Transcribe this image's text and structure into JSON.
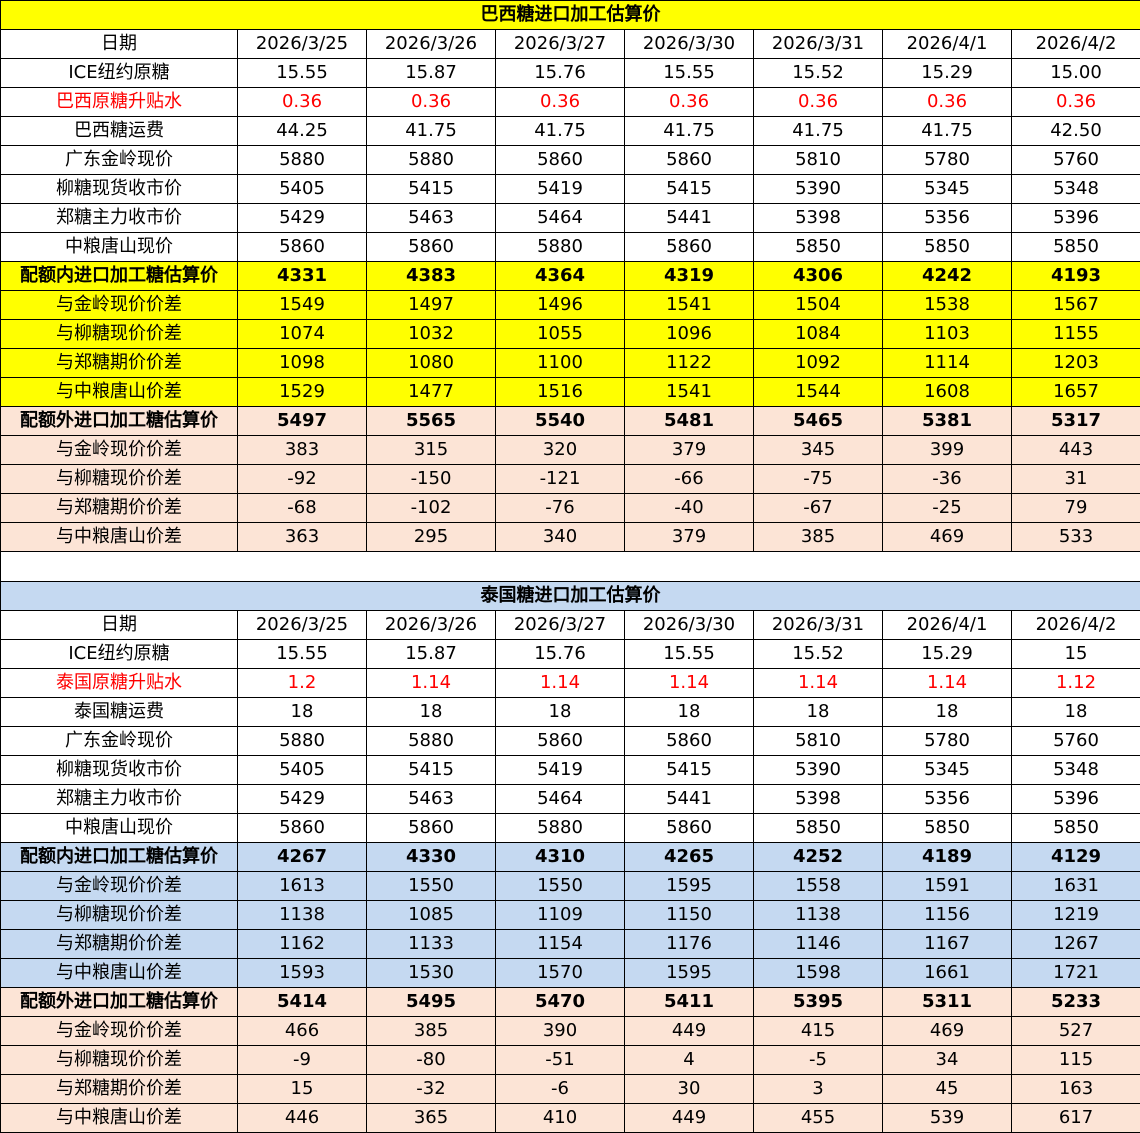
{
  "colors": {
    "yellow": "#FFFF00",
    "peach": "#FCE4D6",
    "blue": "#C5D9F1",
    "red": "#FF0000"
  },
  "tables": [
    {
      "title": "巴西糖进口加工估算价",
      "rows": [
        {
          "label": "日期",
          "style": "plain",
          "values": [
            "2026/3/25",
            "2026/3/26",
            "2026/3/27",
            "2026/3/30",
            "2026/3/31",
            "2026/4/1",
            "2026/4/2"
          ]
        },
        {
          "label": "ICE纽约原糖",
          "style": "plain",
          "values": [
            "15.55",
            "15.87",
            "15.76",
            "15.55",
            "15.52",
            "15.29",
            "15.00"
          ]
        },
        {
          "label": "巴西原糖升贴水",
          "style": "red",
          "values": [
            "0.36",
            "0.36",
            "0.36",
            "0.36",
            "0.36",
            "0.36",
            "0.36"
          ]
        },
        {
          "label": "巴西糖运费",
          "style": "plain",
          "values": [
            "44.25",
            "41.75",
            "41.75",
            "41.75",
            "41.75",
            "41.75",
            "42.50"
          ]
        },
        {
          "label": "广东金岭现价",
          "style": "plain",
          "values": [
            "5880",
            "5880",
            "5860",
            "5860",
            "5810",
            "5780",
            "5760"
          ]
        },
        {
          "label": "柳糖现货收市价",
          "style": "plain",
          "values": [
            "5405",
            "5415",
            "5419",
            "5415",
            "5390",
            "5345",
            "5348"
          ]
        },
        {
          "label": "郑糖主力收市价",
          "style": "plain",
          "values": [
            "5429",
            "5463",
            "5464",
            "5441",
            "5398",
            "5356",
            "5396"
          ]
        },
        {
          "label": "中粮唐山现价",
          "style": "plain",
          "values": [
            "5860",
            "5860",
            "5880",
            "5860",
            "5850",
            "5850",
            "5850"
          ]
        },
        {
          "label": "配额内进口加工糖估算价",
          "style": "yellow bold",
          "values": [
            "4331",
            "4383",
            "4364",
            "4319",
            "4306",
            "4242",
            "4193"
          ]
        },
        {
          "label": "与金岭现价价差",
          "style": "yellow",
          "values": [
            "1549",
            "1497",
            "1496",
            "1541",
            "1504",
            "1538",
            "1567"
          ]
        },
        {
          "label": "与柳糖现价价差",
          "style": "yellow",
          "values": [
            "1074",
            "1032",
            "1055",
            "1096",
            "1084",
            "1103",
            "1155"
          ]
        },
        {
          "label": "与郑糖期价价差",
          "style": "yellow",
          "values": [
            "1098",
            "1080",
            "1100",
            "1122",
            "1092",
            "1114",
            "1203"
          ]
        },
        {
          "label": "与中粮唐山价差",
          "style": "yellow",
          "values": [
            "1529",
            "1477",
            "1516",
            "1541",
            "1544",
            "1608",
            "1657"
          ]
        },
        {
          "label": "配额外进口加工糖估算价",
          "style": "peach bold",
          "values": [
            "5497",
            "5565",
            "5540",
            "5481",
            "5465",
            "5381",
            "5317"
          ]
        },
        {
          "label": "与金岭现价价差",
          "style": "peach",
          "values": [
            "383",
            "315",
            "320",
            "379",
            "345",
            "399",
            "443"
          ]
        },
        {
          "label": "与柳糖现价价差",
          "style": "peach",
          "values": [
            "-92",
            "-150",
            "-121",
            "-66",
            "-75",
            "-36",
            "31"
          ]
        },
        {
          "label": "与郑糖期价价差",
          "style": "peach",
          "values": [
            "-68",
            "-102",
            "-76",
            "-40",
            "-67",
            "-25",
            "79"
          ]
        },
        {
          "label": "与中粮唐山价差",
          "style": "peach",
          "values": [
            "363",
            "295",
            "340",
            "379",
            "385",
            "469",
            "533"
          ]
        }
      ]
    },
    {
      "title": "泰国糖进口加工估算价",
      "rows": [
        {
          "label": "日期",
          "style": "plain",
          "values": [
            "2026/3/25",
            "2026/3/26",
            "2026/3/27",
            "2026/3/30",
            "2026/3/31",
            "2026/4/1",
            "2026/4/2"
          ]
        },
        {
          "label": "ICE纽约原糖",
          "style": "plain",
          "values": [
            "15.55",
            "15.87",
            "15.76",
            "15.55",
            "15.52",
            "15.29",
            "15"
          ]
        },
        {
          "label": "泰国原糖升贴水",
          "style": "red",
          "values": [
            "1.2",
            "1.14",
            "1.14",
            "1.14",
            "1.14",
            "1.14",
            "1.12"
          ]
        },
        {
          "label": "泰国糖运费",
          "style": "plain",
          "values": [
            "18",
            "18",
            "18",
            "18",
            "18",
            "18",
            "18"
          ]
        },
        {
          "label": "广东金岭现价",
          "style": "plain",
          "values": [
            "5880",
            "5880",
            "5860",
            "5860",
            "5810",
            "5780",
            "5760"
          ]
        },
        {
          "label": "柳糖现货收市价",
          "style": "plain",
          "values": [
            "5405",
            "5415",
            "5419",
            "5415",
            "5390",
            "5345",
            "5348"
          ]
        },
        {
          "label": "郑糖主力收市价",
          "style": "plain",
          "values": [
            "5429",
            "5463",
            "5464",
            "5441",
            "5398",
            "5356",
            "5396"
          ]
        },
        {
          "label": "中粮唐山现价",
          "style": "plain",
          "values": [
            "5860",
            "5860",
            "5880",
            "5860",
            "5850",
            "5850",
            "5850"
          ]
        },
        {
          "label": "配额内进口加工糖估算价",
          "style": "blue bold",
          "values": [
            "4267",
            "4330",
            "4310",
            "4265",
            "4252",
            "4189",
            "4129"
          ]
        },
        {
          "label": "与金岭现价价差",
          "style": "blue",
          "values": [
            "1613",
            "1550",
            "1550",
            "1595",
            "1558",
            "1591",
            "1631"
          ]
        },
        {
          "label": "与柳糖现价价差",
          "style": "blue",
          "values": [
            "1138",
            "1085",
            "1109",
            "1150",
            "1138",
            "1156",
            "1219"
          ]
        },
        {
          "label": "与郑糖期价价差",
          "style": "blue",
          "values": [
            "1162",
            "1133",
            "1154",
            "1176",
            "1146",
            "1167",
            "1267"
          ]
        },
        {
          "label": "与中粮唐山价差",
          "style": "blue",
          "values": [
            "1593",
            "1530",
            "1570",
            "1595",
            "1598",
            "1661",
            "1721"
          ]
        },
        {
          "label": "配额外进口加工糖估算价",
          "style": "peach bold",
          "values": [
            "5414",
            "5495",
            "5470",
            "5411",
            "5395",
            "5311",
            "5233"
          ]
        },
        {
          "label": "与金岭现价价差",
          "style": "peach",
          "values": [
            "466",
            "385",
            "390",
            "449",
            "415",
            "469",
            "527"
          ]
        },
        {
          "label": "与柳糖现价价差",
          "style": "peach",
          "values": [
            "-9",
            "-80",
            "-51",
            "4",
            "-5",
            "34",
            "115"
          ]
        },
        {
          "label": "与郑糖期价价差",
          "style": "peach",
          "values": [
            "15",
            "-32",
            "-6",
            "30",
            "3",
            "45",
            "163"
          ]
        },
        {
          "label": "与中粮唐山价差",
          "style": "peach",
          "values": [
            "446",
            "365",
            "410",
            "449",
            "455",
            "539",
            "617"
          ]
        }
      ]
    }
  ]
}
